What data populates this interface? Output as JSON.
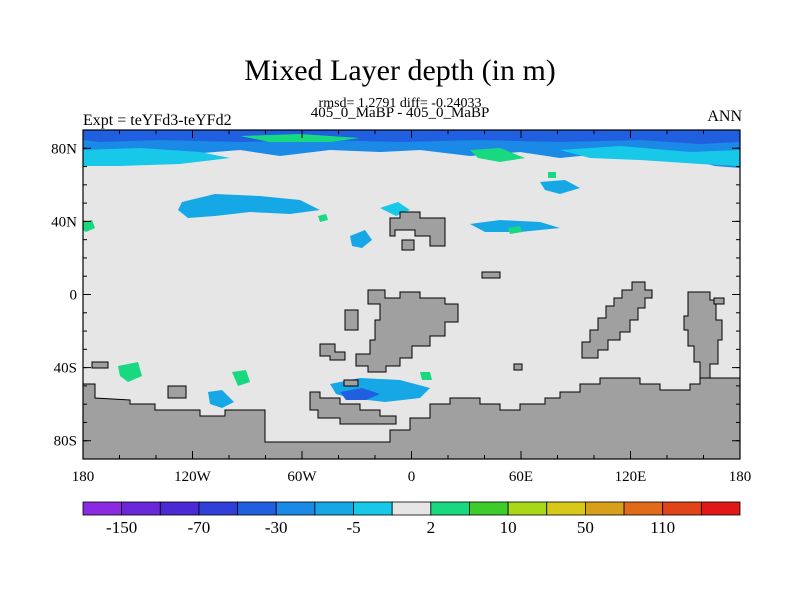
{
  "chart_data": {
    "type": "heatmap",
    "title": "Mixed Layer depth (in m)",
    "stats_line": "rmsd= 1.2791 diff= -0.24033",
    "subtitle": "405_0_MaBP - 405_0_MaBP",
    "left_label": "Expt = teYFd3-teYFd2",
    "right_label": "ANN",
    "x_axis": {
      "range": [
        -180,
        180
      ],
      "ticks": [
        {
          "value": -180,
          "label": "180"
        },
        {
          "value": -120,
          "label": "120W"
        },
        {
          "value": -60,
          "label": "60W"
        },
        {
          "value": 0,
          "label": "0"
        },
        {
          "value": 60,
          "label": "60E"
        },
        {
          "value": 120,
          "label": "120E"
        },
        {
          "value": 180,
          "label": "180"
        }
      ]
    },
    "y_axis": {
      "range": [
        -90,
        90
      ],
      "ticks": [
        {
          "value": 80,
          "label": "80N"
        },
        {
          "value": 40,
          "label": "40N"
        },
        {
          "value": 0,
          "label": "0"
        },
        {
          "value": -40,
          "label": "40S"
        },
        {
          "value": -80,
          "label": "80S"
        }
      ]
    },
    "colorbar": {
      "colors": [
        "#8a2be2",
        "#6a28d8",
        "#4b2ad6",
        "#2f3fd8",
        "#1f5fe0",
        "#1a8ae6",
        "#16a8e6",
        "#18c8e8",
        "#e6e6e6",
        "#18d880",
        "#3ecc2a",
        "#a8d818",
        "#d8c818",
        "#d8a018",
        "#e06a18",
        "#e04418",
        "#e01818"
      ],
      "labels": [
        "-150",
        "-70",
        "-30",
        "-5",
        "2",
        "10",
        "50",
        "110"
      ]
    },
    "land_color": "#a0a0a0",
    "ocean_color": "#e6e6e6"
  },
  "colors": {
    "land": "#a0a0a0",
    "zero_field": "#e6e6e6",
    "neg_deep": "#1f5fe0",
    "neg_mid": "#1a8ae6",
    "neg_light": "#18c8e8",
    "pos_light": "#18d880"
  }
}
